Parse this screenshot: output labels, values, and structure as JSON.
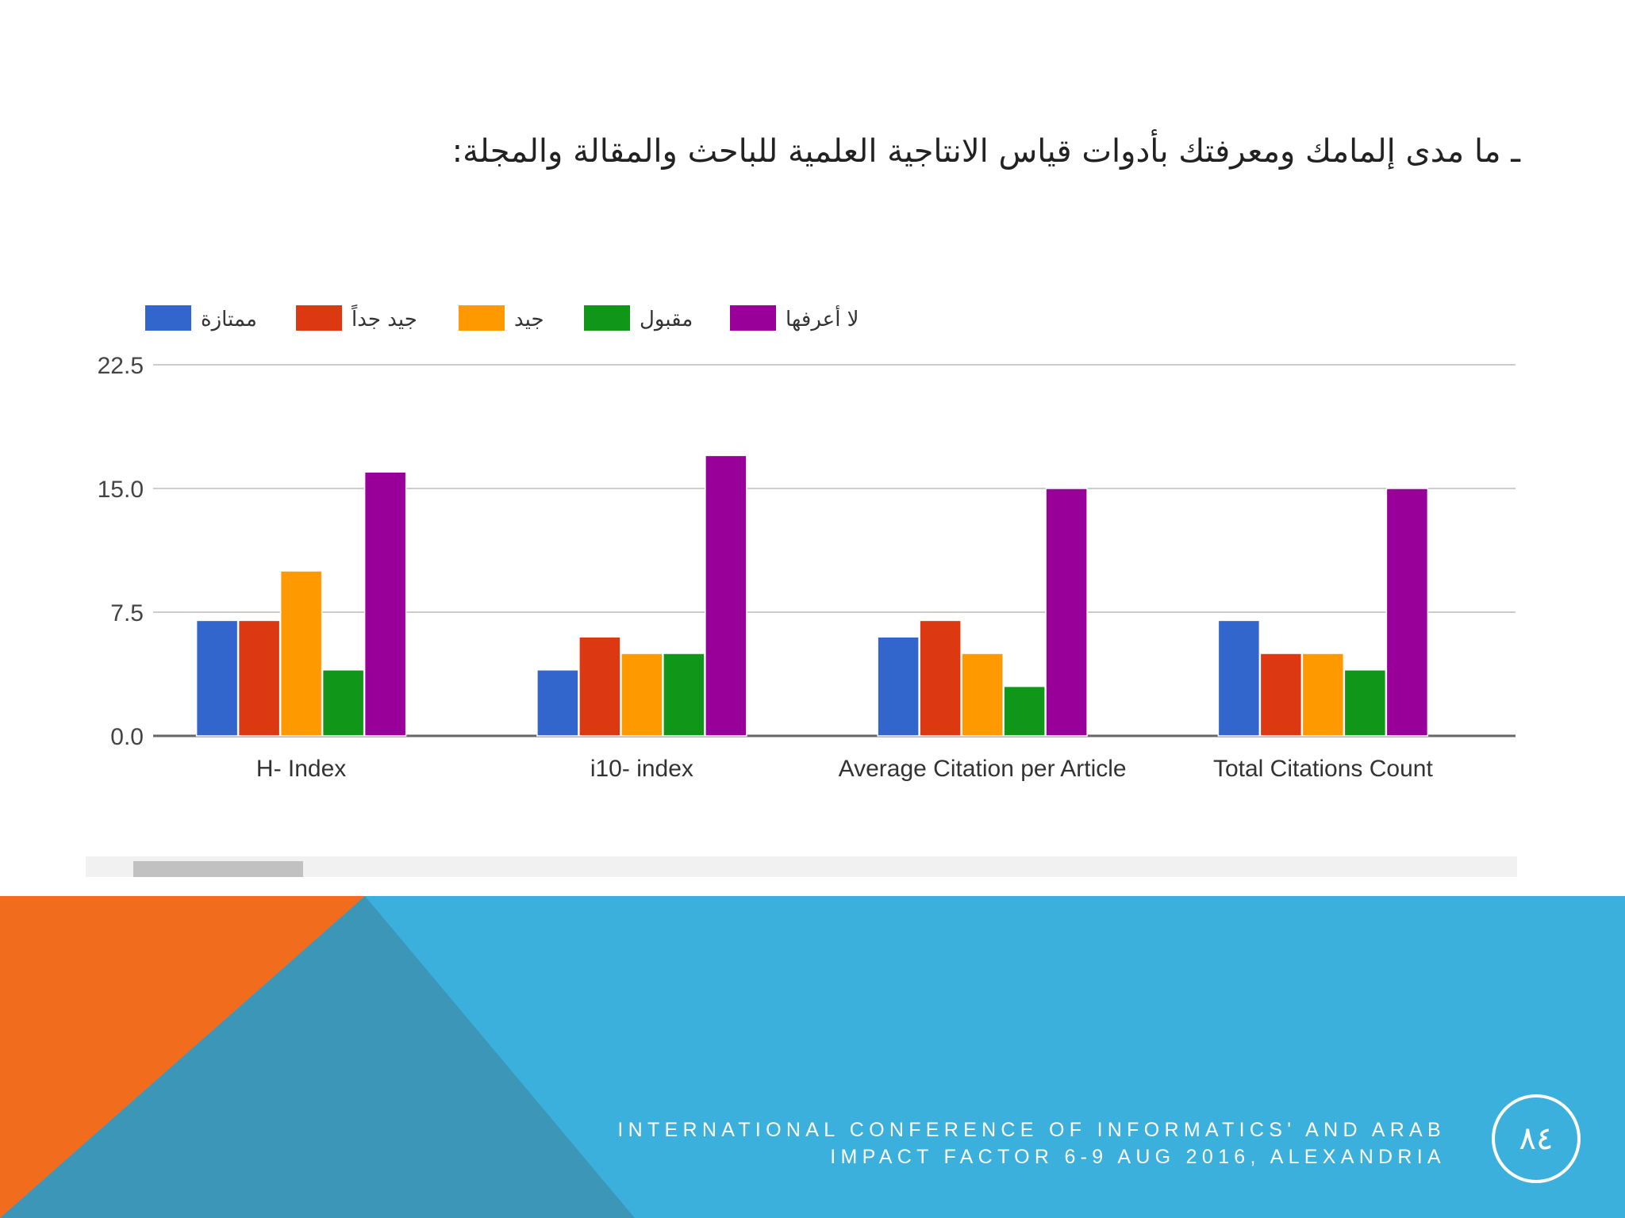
{
  "slide": {
    "question": "ـ ما مدى إلمامك ومعرفتك بأدوات قياس الانتاجية العلمية للباحث والمقالة والمجلة:",
    "footer_line1": "INTERNATIONAL CONFERENCE OF INFORMATICS' AND ARAB",
    "footer_line2": "IMPACT FACTOR   6-9 AUG 2016, ALEXANDRIA",
    "page_number": "٨٤"
  },
  "colors": {
    "footer_blue": "#3bb0dd",
    "footer_orange": "#f26c1d",
    "footer_slate": "#3c96b8"
  },
  "chart_data": {
    "type": "bar",
    "title": "",
    "xlabel": "",
    "ylabel": "",
    "ylim": [
      0,
      22.5
    ],
    "yticks": [
      0.0,
      7.5,
      15.0,
      22.5
    ],
    "ytick_labels": [
      "0.0",
      "7.5",
      "15.0",
      "22.5"
    ],
    "grid": true,
    "legend_position": "top-left",
    "categories": [
      "H- Index",
      "i10- index",
      "Average Citation per Article",
      "Total Citations Count"
    ],
    "series": [
      {
        "name": "ممتازة",
        "color": "#3366cc",
        "values": [
          7,
          4,
          6,
          7
        ]
      },
      {
        "name": "جيد جداً",
        "color": "#dc3912",
        "values": [
          7,
          6,
          7,
          5
        ]
      },
      {
        "name": "جيد",
        "color": "#ff9900",
        "values": [
          10,
          5,
          5,
          5
        ]
      },
      {
        "name": "مقبول",
        "color": "#109618",
        "values": [
          4,
          5,
          3,
          4
        ]
      },
      {
        "name": "لا أعرفها",
        "color": "#990099",
        "values": [
          16,
          17,
          15,
          15
        ]
      }
    ]
  }
}
